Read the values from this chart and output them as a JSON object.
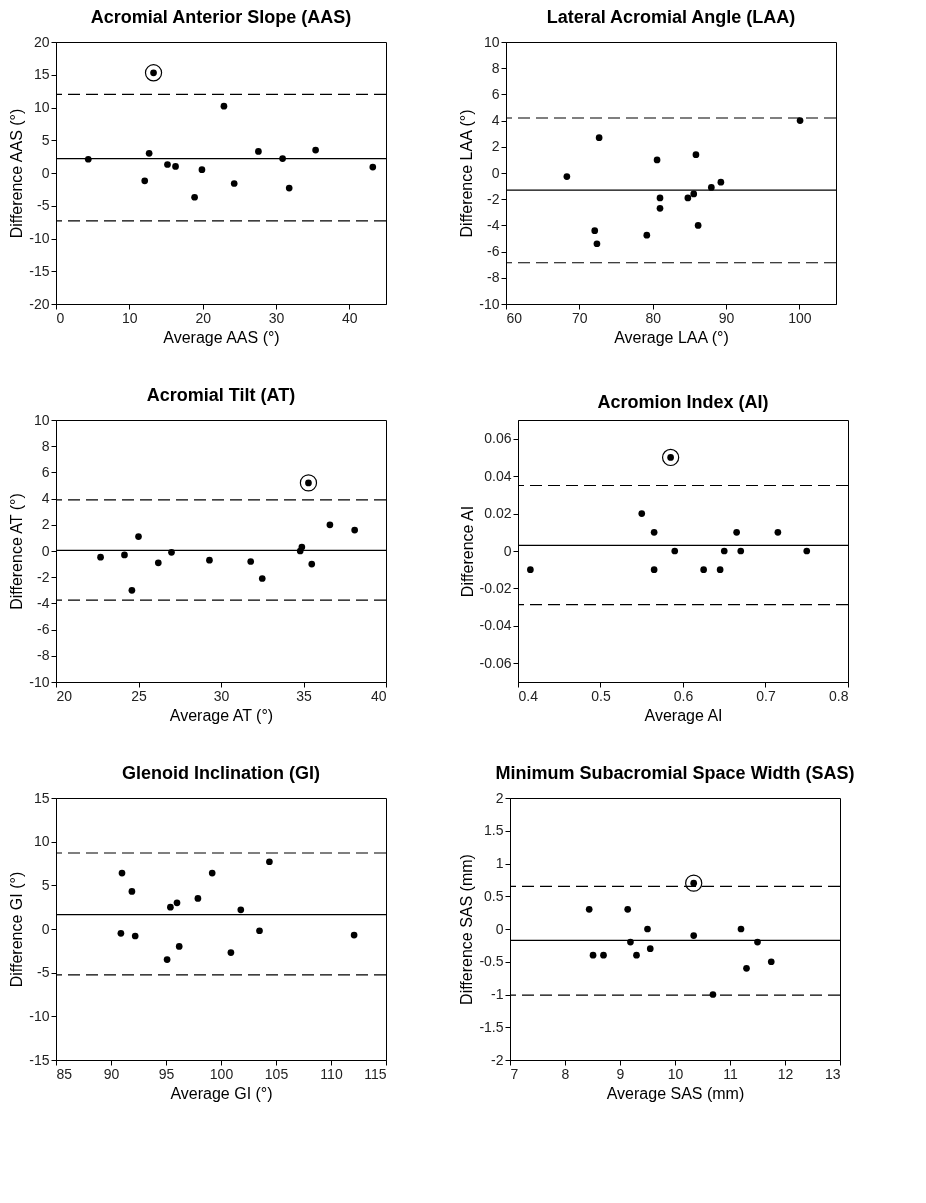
{
  "chart_data": [
    {
      "type": "scatter",
      "title": "Acromial Anterior Slope (AAS)",
      "xlabel": "Average AAS (°)",
      "ylabel": "Difference AAS (°)",
      "xlim": [
        0,
        45
      ],
      "ylim": [
        -20,
        20
      ],
      "xticks": [
        0,
        10,
        20,
        30,
        40
      ],
      "yticks": [
        -20,
        -15,
        -10,
        -5,
        0,
        5,
        10,
        15,
        20
      ],
      "grid": false,
      "marker": "circle",
      "series": [
        {
          "color": "#000000",
          "x": [
            4.4,
            12.1,
            12.7,
            13.3,
            15.2,
            16.3,
            18.9,
            19.9,
            22.9,
            24.3,
            27.6,
            30.9,
            31.8,
            35.4,
            43.2
          ],
          "values": [
            2.1,
            -1.2,
            3.0,
            15.3,
            1.3,
            1.0,
            -3.7,
            0.5,
            10.2,
            -1.6,
            3.3,
            2.2,
            -2.3,
            3.5,
            0.9
          ]
        },
        {
          "type": "scatter",
          "marker": "circle",
          "color": "#000000",
          "x": [
            13.3
          ],
          "values": [
            15.3
          ]
        }
      ],
      "ref_lines": [
        {
          "axis": "y",
          "value": 12.0,
          "line_style": "dashed",
          "color": "#000000"
        },
        {
          "axis": "y",
          "value": 2.2,
          "line_style": "solid",
          "color": "#000000"
        },
        {
          "axis": "y",
          "value": -7.3,
          "line_style": "dashed",
          "color": "#000000"
        }
      ]
    },
    {
      "type": "scatter",
      "title": "Lateral Acromial Angle (LAA)",
      "xlabel": "Average LAA (°)",
      "ylabel": "Difference LAA (°)",
      "xlim": [
        60,
        105
      ],
      "ylim": [
        -10,
        10
      ],
      "xticks": [
        60,
        70,
        80,
        90,
        100
      ],
      "yticks": [
        -10,
        -8,
        -6,
        -4,
        -2,
        0,
        2,
        4,
        6,
        8,
        10
      ],
      "grid": false,
      "marker": "circle",
      "series": [
        {
          "color": "#000000",
          "x": [
            68.3,
            72.1,
            72.4,
            72.7,
            79.2,
            80.6,
            81.0,
            81.0,
            84.8,
            85.6,
            85.9,
            86.2,
            88.0,
            89.3,
            100.1
          ],
          "values": [
            -0.27,
            -4.4,
            -5.4,
            2.7,
            -4.75,
            1.0,
            -1.9,
            -2.7,
            -1.9,
            -1.6,
            1.4,
            -4.0,
            -1.1,
            -0.7,
            4.0
          ]
        }
      ],
      "ref_lines": [
        {
          "axis": "y",
          "value": 4.2,
          "line_style": "dashed",
          "color": "#000000"
        },
        {
          "axis": "y",
          "value": -1.3,
          "line_style": "solid",
          "color": "#000000"
        },
        {
          "axis": "y",
          "value": -6.85,
          "line_style": "dashed",
          "color": "#000000"
        }
      ]
    },
    {
      "type": "scatter",
      "title": "Acromial Tilt (AT)",
      "xlabel": "Average AT (°)",
      "ylabel": "Difference AT (°)",
      "xlim": [
        20,
        40
      ],
      "ylim": [
        -10,
        10
      ],
      "xticks": [
        20,
        25,
        30,
        35,
        40
      ],
      "yticks": [
        -10,
        -8,
        -6,
        -4,
        -2,
        0,
        2,
        4,
        6,
        8,
        10
      ],
      "grid": false,
      "marker": "circle",
      "series": [
        {
          "color": "#000000",
          "x": [
            22.7,
            24.15,
            24.6,
            25.0,
            26.2,
            27.0,
            29.3,
            31.8,
            32.5,
            34.8,
            34.9,
            35.3,
            35.5,
            36.6,
            38.1
          ],
          "values": [
            -0.47,
            -0.3,
            -3.0,
            1.1,
            -0.9,
            -0.1,
            -0.7,
            -0.8,
            -2.1,
            0.0,
            0.3,
            5.2,
            -1.0,
            2.0,
            1.6
          ]
        },
        {
          "type": "scatter",
          "marker": "circle",
          "color": "#000000",
          "x": [
            35.3
          ],
          "values": [
            5.2
          ]
        }
      ],
      "ref_lines": [
        {
          "axis": "y",
          "value": 3.9,
          "line_style": "dashed",
          "color": "#000000"
        },
        {
          "axis": "y",
          "value": 0.05,
          "line_style": "solid",
          "color": "#000000"
        },
        {
          "axis": "y",
          "value": -3.75,
          "line_style": "dashed",
          "color": "#000000"
        }
      ]
    },
    {
      "type": "scatter",
      "title": "Acromion Index (AI)",
      "xlabel": "Average AI",
      "ylabel": "Difference AI",
      "xlim": [
        0.4,
        0.8
      ],
      "ylim": [
        -0.07,
        0.07
      ],
      "xticks": [
        0.4,
        0.5,
        0.6,
        0.7,
        0.8
      ],
      "yticks": [
        -0.06,
        -0.04,
        -0.02,
        0,
        0.02,
        0.04,
        0.06
      ],
      "grid": false,
      "marker": "circle",
      "series": [
        {
          "color": "#000000",
          "x": [
            0.415,
            0.55,
            0.565,
            0.565,
            0.585,
            0.59,
            0.625,
            0.645,
            0.65,
            0.665,
            0.67,
            0.715,
            0.75
          ],
          "values": [
            -0.01,
            0.02,
            0.01,
            -0.01,
            0.05,
            0,
            -0.01,
            -0.01,
            0,
            0.01,
            0,
            0.01,
            0
          ]
        },
        {
          "type": "scatter",
          "marker": "circle",
          "color": "#000000",
          "x": [
            0.585
          ],
          "values": [
            0.05
          ]
        }
      ],
      "ref_lines": [
        {
          "axis": "y",
          "value": 0.035,
          "line_style": "dashed",
          "color": "#000000"
        },
        {
          "axis": "y",
          "value": 0.003,
          "line_style": "solid",
          "color": "#000000"
        },
        {
          "axis": "y",
          "value": -0.0287,
          "line_style": "dashed",
          "color": "#000000"
        }
      ]
    },
    {
      "type": "scatter",
      "title": "Glenoid Inclination (GI)",
      "xlabel": "Average GI (°)",
      "ylabel": "Difference GI (°)",
      "xlim": [
        85,
        115
      ],
      "ylim": [
        -15,
        15
      ],
      "xticks": [
        85,
        90,
        95,
        100,
        105,
        110,
        115
      ],
      "yticks": [
        -15,
        -10,
        -5,
        0,
        5,
        10,
        15
      ],
      "grid": false,
      "marker": "circle",
      "series": [
        {
          "color": "#000000",
          "x": [
            90.9,
            91.0,
            91.9,
            92.2,
            95.1,
            95.4,
            96.0,
            96.2,
            97.9,
            99.2,
            100.9,
            101.8,
            103.5,
            104.4,
            112.1
          ],
          "values": [
            -0.5,
            6.4,
            4.3,
            -0.8,
            -3.5,
            2.5,
            3.0,
            -2.0,
            3.5,
            6.4,
            -2.7,
            2.2,
            -0.2,
            7.7,
            -0.7
          ]
        }
      ],
      "ref_lines": [
        {
          "axis": "y",
          "value": 8.7,
          "line_style": "dashed",
          "color": "#000000"
        },
        {
          "axis": "y",
          "value": 1.65,
          "line_style": "solid",
          "color": "#000000"
        },
        {
          "axis": "y",
          "value": -5.25,
          "line_style": "dashed",
          "color": "#000000"
        }
      ]
    },
    {
      "type": "scatter",
      "title": "Minimum Subacromial Space Width (SAS)",
      "xlabel": "Average SAS (mm)",
      "ylabel": "Difference SAS (mm)",
      "xlim": [
        7,
        13
      ],
      "ylim": [
        -2,
        2
      ],
      "xticks": [
        7,
        8,
        9,
        10,
        11,
        12,
        13
      ],
      "yticks": [
        -2,
        -1.5,
        -1,
        -0.5,
        0,
        0.5,
        1,
        1.5,
        2
      ],
      "grid": false,
      "marker": "circle",
      "series": [
        {
          "color": "#000000",
          "x": [
            8.44,
            8.51,
            8.7,
            9.14,
            9.19,
            9.3,
            9.5,
            9.55,
            10.34,
            10.34,
            10.69,
            11.2,
            11.3,
            11.5,
            11.75
          ],
          "values": [
            0.3,
            -0.4,
            -0.4,
            0.3,
            -0.2,
            -0.4,
            0,
            -0.3,
            0.7,
            -0.1,
            -1.0,
            0,
            -0.6,
            -0.2,
            -0.5
          ]
        },
        {
          "type": "scatter",
          "marker": "circle",
          "color": "#000000",
          "x": [
            10.34
          ],
          "values": [
            0.7
          ]
        }
      ],
      "ref_lines": [
        {
          "axis": "y",
          "value": 0.65,
          "line_style": "dashed",
          "color": "#000000"
        },
        {
          "axis": "y",
          "value": -0.175,
          "line_style": "solid",
          "color": "#000000"
        },
        {
          "axis": "y",
          "value": -1.01,
          "line_style": "dashed",
          "color": "#000000"
        }
      ]
    }
  ]
}
